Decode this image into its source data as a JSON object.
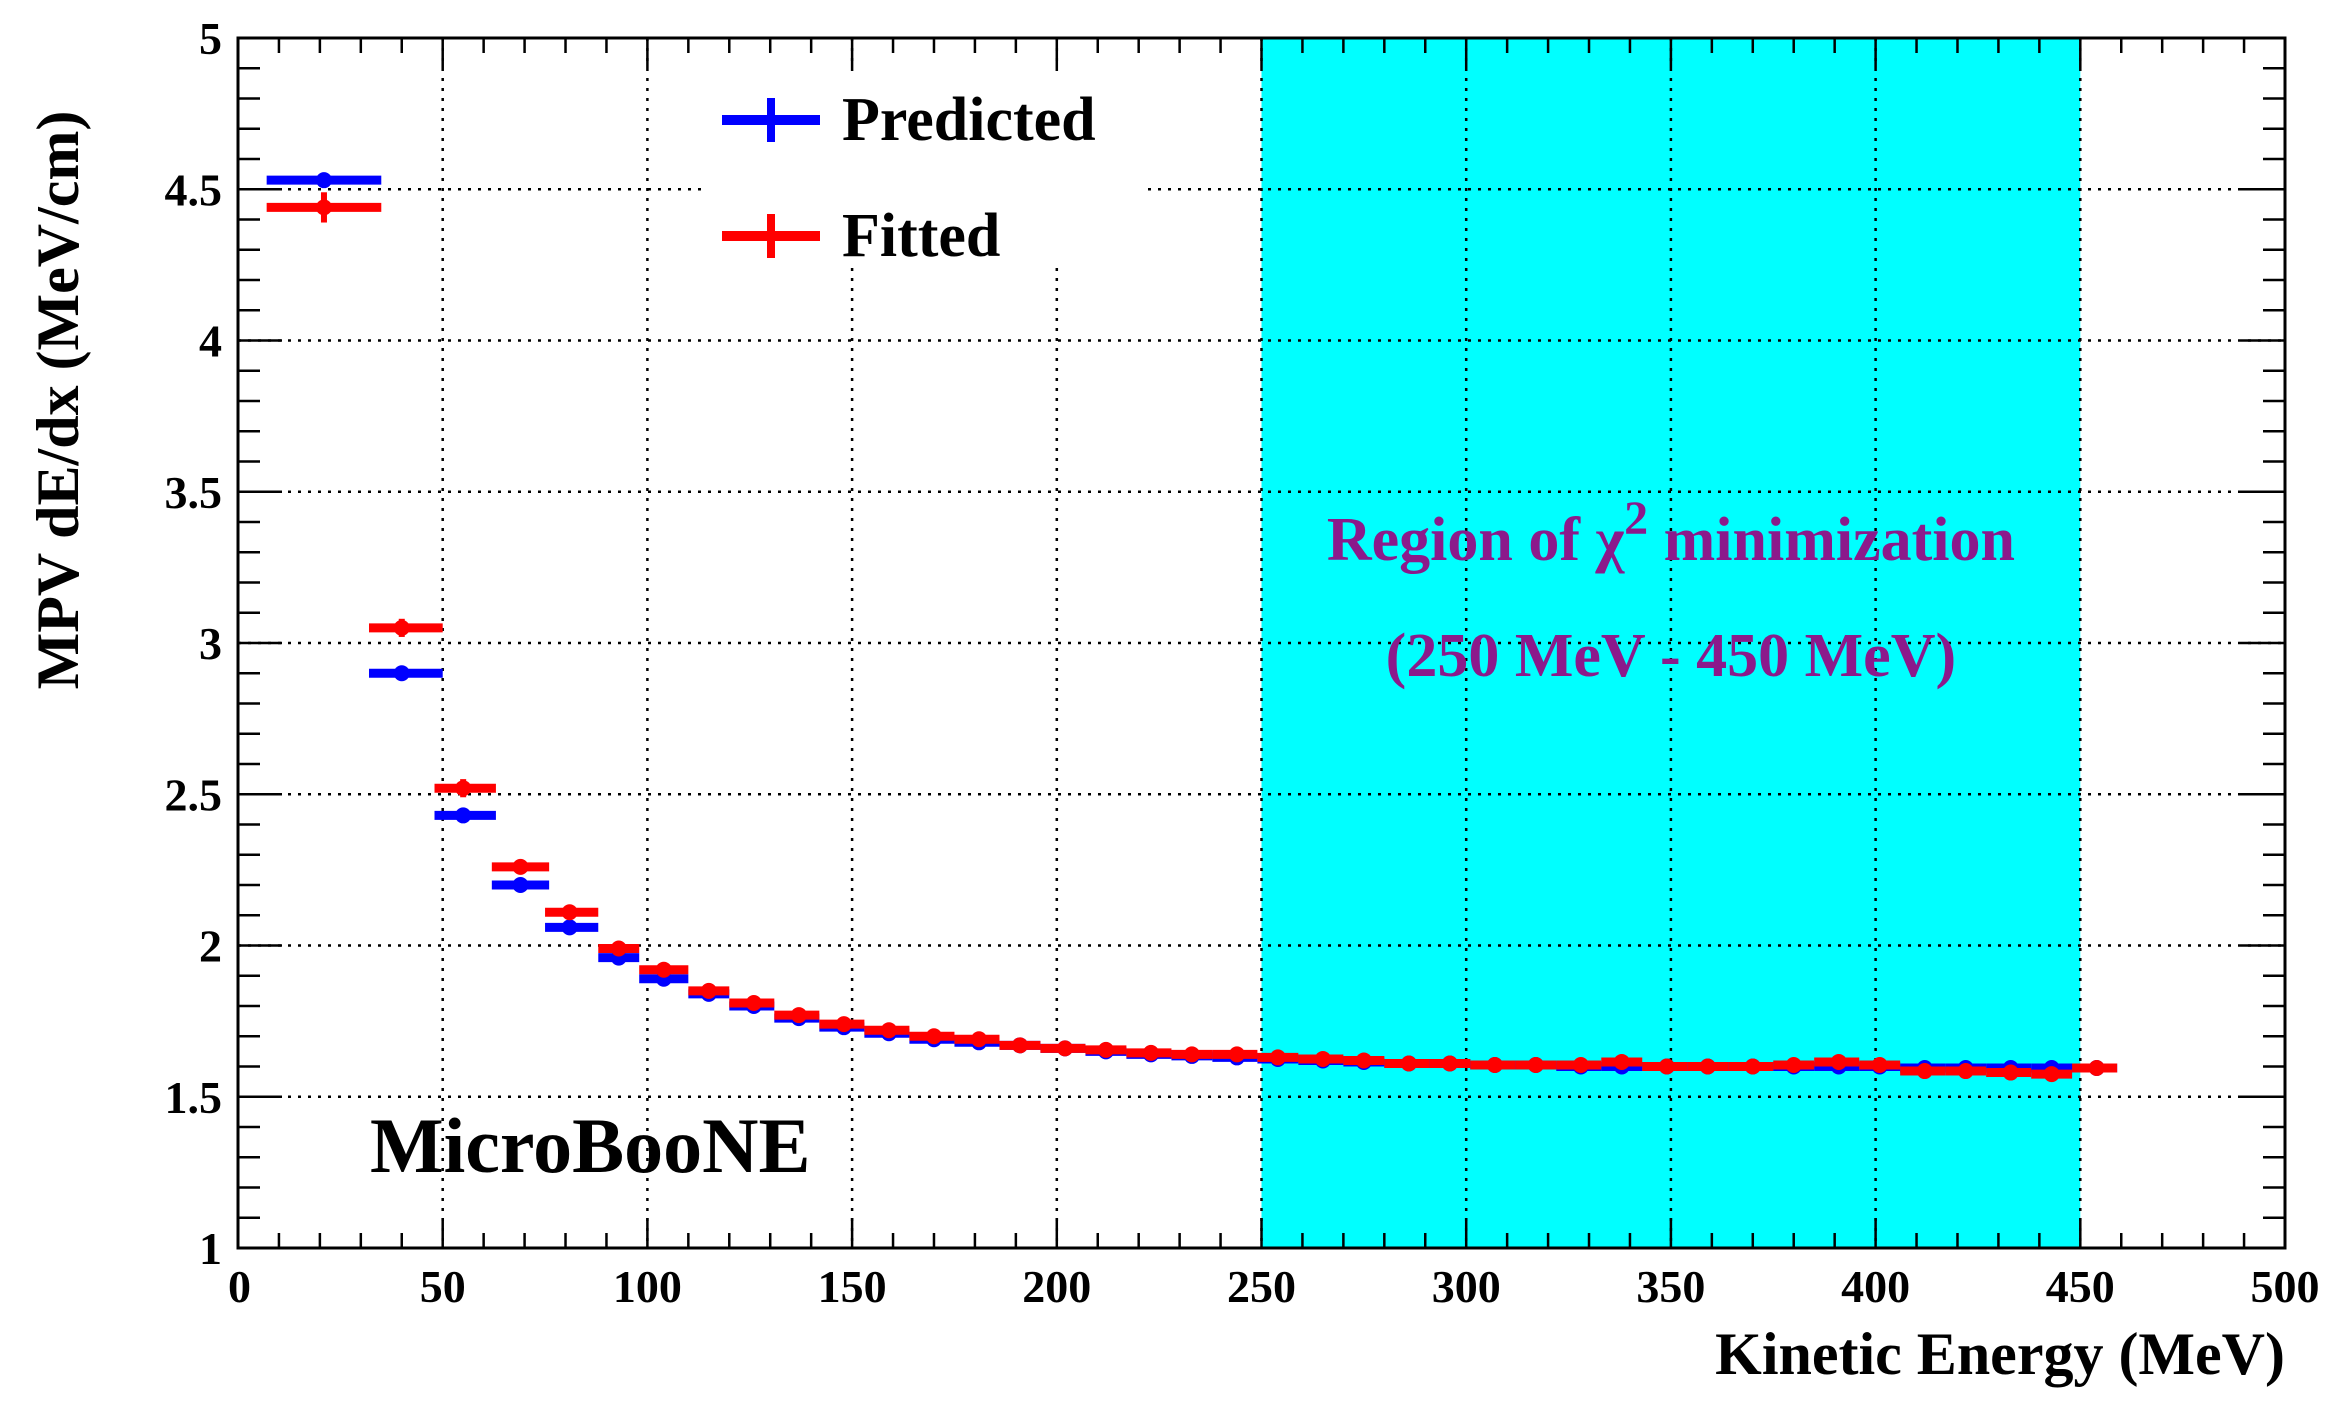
{
  "chart_data": {
    "type": "scatter",
    "title": "",
    "xlabel": "Kinetic Energy (MeV)",
    "ylabel": "MPV dE/dx (MeV/cm)",
    "xlim": [
      0,
      500
    ],
    "ylim": [
      1,
      5
    ],
    "xticks": [
      0,
      50,
      100,
      150,
      200,
      250,
      300,
      350,
      400,
      450,
      500
    ],
    "xtick_labels": [
      "0",
      "50",
      "100",
      "150",
      "200",
      "250",
      "300",
      "350",
      "400",
      "450",
      "500"
    ],
    "yticks": [
      1,
      1.5,
      2,
      2.5,
      3,
      3.5,
      4,
      4.5,
      5
    ],
    "ytick_labels": [
      "1",
      "1.5",
      "2",
      "2.5",
      "3",
      "3.5",
      "4",
      "4.5",
      "5"
    ],
    "grid": true,
    "legend_position": "top-left",
    "bin_width_note": "horizontal error bars span each energy bin",
    "series": [
      {
        "name": "Predicted",
        "color": "#0000ff",
        "points": [
          {
            "x": 21,
            "xlo": 7,
            "xhi": 35,
            "y": 4.53,
            "yerr": 0.01
          },
          {
            "x": 40,
            "xlo": 32,
            "xhi": 50,
            "y": 2.9,
            "yerr": 0.01
          },
          {
            "x": 55,
            "xlo": 48,
            "xhi": 63,
            "y": 2.43,
            "yerr": 0.01
          },
          {
            "x": 69,
            "xlo": 62,
            "xhi": 76,
            "y": 2.2,
            "yerr": 0.01
          },
          {
            "x": 81,
            "xlo": 75,
            "xhi": 88,
            "y": 2.06,
            "yerr": 0.01
          },
          {
            "x": 93,
            "xlo": 88,
            "xhi": 98,
            "y": 1.96,
            "yerr": 0.01
          },
          {
            "x": 104,
            "xlo": 98,
            "xhi": 110,
            "y": 1.89,
            "yerr": 0.01
          },
          {
            "x": 115,
            "xlo": 110,
            "xhi": 120,
            "y": 1.84,
            "yerr": 0.01
          },
          {
            "x": 126,
            "xlo": 120,
            "xhi": 131,
            "y": 1.8,
            "yerr": 0.01
          },
          {
            "x": 137,
            "xlo": 131,
            "xhi": 142,
            "y": 1.76,
            "yerr": 0.01
          },
          {
            "x": 148,
            "xlo": 142,
            "xhi": 153,
            "y": 1.73,
            "yerr": 0.01
          },
          {
            "x": 159,
            "xlo": 153,
            "xhi": 164,
            "y": 1.71,
            "yerr": 0.01
          },
          {
            "x": 170,
            "xlo": 164,
            "xhi": 175,
            "y": 1.69,
            "yerr": 0.01
          },
          {
            "x": 181,
            "xlo": 175,
            "xhi": 186,
            "y": 1.68,
            "yerr": 0.01
          },
          {
            "x": 191,
            "xlo": 186,
            "xhi": 196,
            "y": 1.67,
            "yerr": 0.01
          },
          {
            "x": 202,
            "xlo": 196,
            "xhi": 207,
            "y": 1.66,
            "yerr": 0.01
          },
          {
            "x": 212,
            "xlo": 207,
            "xhi": 217,
            "y": 1.65,
            "yerr": 0.01
          },
          {
            "x": 223,
            "xlo": 217,
            "xhi": 228,
            "y": 1.64,
            "yerr": 0.01
          },
          {
            "x": 233,
            "xlo": 228,
            "xhi": 238,
            "y": 1.635,
            "yerr": 0.01
          },
          {
            "x": 244,
            "xlo": 238,
            "xhi": 249,
            "y": 1.63,
            "yerr": 0.01
          },
          {
            "x": 254,
            "xlo": 249,
            "xhi": 259,
            "y": 1.625,
            "yerr": 0.01
          },
          {
            "x": 265,
            "xlo": 259,
            "xhi": 270,
            "y": 1.62,
            "yerr": 0.01
          },
          {
            "x": 275,
            "xlo": 270,
            "xhi": 280,
            "y": 1.615,
            "yerr": 0.01
          },
          {
            "x": 286,
            "xlo": 280,
            "xhi": 291,
            "y": 1.61,
            "yerr": 0.01
          },
          {
            "x": 296,
            "xlo": 291,
            "xhi": 301,
            "y": 1.61,
            "yerr": 0.01
          },
          {
            "x": 307,
            "xlo": 301,
            "xhi": 312,
            "y": 1.605,
            "yerr": 0.01
          },
          {
            "x": 317,
            "xlo": 312,
            "xhi": 322,
            "y": 1.605,
            "yerr": 0.01
          },
          {
            "x": 328,
            "xlo": 322,
            "xhi": 333,
            "y": 1.6,
            "yerr": 0.01
          },
          {
            "x": 338,
            "xlo": 333,
            "xhi": 343,
            "y": 1.6,
            "yerr": 0.01
          },
          {
            "x": 349,
            "xlo": 343,
            "xhi": 354,
            "y": 1.6,
            "yerr": 0.01
          },
          {
            "x": 359,
            "xlo": 354,
            "xhi": 364,
            "y": 1.6,
            "yerr": 0.01
          },
          {
            "x": 370,
            "xlo": 364,
            "xhi": 375,
            "y": 1.6,
            "yerr": 0.01
          },
          {
            "x": 380,
            "xlo": 375,
            "xhi": 385,
            "y": 1.6,
            "yerr": 0.01
          },
          {
            "x": 391,
            "xlo": 385,
            "xhi": 396,
            "y": 1.6,
            "yerr": 0.01
          },
          {
            "x": 401,
            "xlo": 396,
            "xhi": 406,
            "y": 1.6,
            "yerr": 0.01
          },
          {
            "x": 412,
            "xlo": 406,
            "xhi": 417,
            "y": 1.595,
            "yerr": 0.01
          },
          {
            "x": 422,
            "xlo": 417,
            "xhi": 427,
            "y": 1.595,
            "yerr": 0.01
          },
          {
            "x": 433,
            "xlo": 427,
            "xhi": 438,
            "y": 1.595,
            "yerr": 0.01
          },
          {
            "x": 443,
            "xlo": 438,
            "xhi": 448,
            "y": 1.595,
            "yerr": 0.01
          },
          {
            "x": 454,
            "xlo": 448,
            "xhi": 459,
            "y": 1.595,
            "yerr": 0.01
          }
        ]
      },
      {
        "name": "Fitted",
        "color": "#ff0000",
        "points": [
          {
            "x": 21,
            "xlo": 7,
            "xhi": 35,
            "y": 4.44,
            "yerr": 0.05
          },
          {
            "x": 40,
            "xlo": 32,
            "xhi": 50,
            "y": 3.05,
            "yerr": 0.03
          },
          {
            "x": 55,
            "xlo": 48,
            "xhi": 63,
            "y": 2.52,
            "yerr": 0.03
          },
          {
            "x": 69,
            "xlo": 62,
            "xhi": 76,
            "y": 2.26,
            "yerr": 0.02
          },
          {
            "x": 81,
            "xlo": 75,
            "xhi": 88,
            "y": 2.11,
            "yerr": 0.02
          },
          {
            "x": 93,
            "xlo": 88,
            "xhi": 98,
            "y": 1.99,
            "yerr": 0.02
          },
          {
            "x": 104,
            "xlo": 98,
            "xhi": 110,
            "y": 1.92,
            "yerr": 0.01
          },
          {
            "x": 115,
            "xlo": 110,
            "xhi": 120,
            "y": 1.85,
            "yerr": 0.01
          },
          {
            "x": 126,
            "xlo": 120,
            "xhi": 131,
            "y": 1.81,
            "yerr": 0.01
          },
          {
            "x": 137,
            "xlo": 131,
            "xhi": 142,
            "y": 1.77,
            "yerr": 0.01
          },
          {
            "x": 148,
            "xlo": 142,
            "xhi": 153,
            "y": 1.74,
            "yerr": 0.01
          },
          {
            "x": 159,
            "xlo": 153,
            "xhi": 164,
            "y": 1.72,
            "yerr": 0.01
          },
          {
            "x": 170,
            "xlo": 164,
            "xhi": 175,
            "y": 1.7,
            "yerr": 0.01
          },
          {
            "x": 181,
            "xlo": 175,
            "xhi": 186,
            "y": 1.69,
            "yerr": 0.01
          },
          {
            "x": 191,
            "xlo": 186,
            "xhi": 196,
            "y": 1.67,
            "yerr": 0.01
          },
          {
            "x": 202,
            "xlo": 196,
            "xhi": 207,
            "y": 1.66,
            "yerr": 0.01
          },
          {
            "x": 212,
            "xlo": 207,
            "xhi": 217,
            "y": 1.655,
            "yerr": 0.01
          },
          {
            "x": 223,
            "xlo": 217,
            "xhi": 228,
            "y": 1.645,
            "yerr": 0.01
          },
          {
            "x": 233,
            "xlo": 228,
            "xhi": 238,
            "y": 1.64,
            "yerr": 0.01
          },
          {
            "x": 244,
            "xlo": 238,
            "xhi": 249,
            "y": 1.64,
            "yerr": 0.01
          },
          {
            "x": 254,
            "xlo": 249,
            "xhi": 259,
            "y": 1.63,
            "yerr": 0.01
          },
          {
            "x": 265,
            "xlo": 259,
            "xhi": 270,
            "y": 1.625,
            "yerr": 0.01
          },
          {
            "x": 275,
            "xlo": 270,
            "xhi": 280,
            "y": 1.62,
            "yerr": 0.01
          },
          {
            "x": 286,
            "xlo": 280,
            "xhi": 291,
            "y": 1.61,
            "yerr": 0.01
          },
          {
            "x": 296,
            "xlo": 291,
            "xhi": 301,
            "y": 1.61,
            "yerr": 0.01
          },
          {
            "x": 307,
            "xlo": 301,
            "xhi": 312,
            "y": 1.605,
            "yerr": 0.01
          },
          {
            "x": 317,
            "xlo": 312,
            "xhi": 322,
            "y": 1.605,
            "yerr": 0.01
          },
          {
            "x": 328,
            "xlo": 322,
            "xhi": 333,
            "y": 1.605,
            "yerr": 0.01
          },
          {
            "x": 338,
            "xlo": 333,
            "xhi": 343,
            "y": 1.615,
            "yerr": 0.01
          },
          {
            "x": 349,
            "xlo": 343,
            "xhi": 354,
            "y": 1.6,
            "yerr": 0.01
          },
          {
            "x": 359,
            "xlo": 354,
            "xhi": 364,
            "y": 1.6,
            "yerr": 0.01
          },
          {
            "x": 370,
            "xlo": 364,
            "xhi": 375,
            "y": 1.6,
            "yerr": 0.01
          },
          {
            "x": 380,
            "xlo": 375,
            "xhi": 385,
            "y": 1.605,
            "yerr": 0.01
          },
          {
            "x": 391,
            "xlo": 385,
            "xhi": 396,
            "y": 1.615,
            "yerr": 0.01
          },
          {
            "x": 401,
            "xlo": 396,
            "xhi": 406,
            "y": 1.605,
            "yerr": 0.01
          },
          {
            "x": 412,
            "xlo": 406,
            "xhi": 417,
            "y": 1.585,
            "yerr": 0.01
          },
          {
            "x": 422,
            "xlo": 417,
            "xhi": 427,
            "y": 1.585,
            "yerr": 0.01
          },
          {
            "x": 433,
            "xlo": 427,
            "xhi": 438,
            "y": 1.58,
            "yerr": 0.01
          },
          {
            "x": 443,
            "xlo": 438,
            "xhi": 448,
            "y": 1.575,
            "yerr": 0.01
          },
          {
            "x": 454,
            "xlo": 448,
            "xhi": 459,
            "y": 1.595,
            "yerr": 0.01
          }
        ]
      }
    ],
    "shaded_region": {
      "x_range": [
        250,
        450
      ],
      "color": "#00ffff",
      "label_line1_prefix": "Region of χ",
      "label_line1_superscript": "2",
      "label_line1_suffix": " minimization",
      "label_line2": "(250 MeV - 450 MeV)",
      "label_color": "#8b1a8b"
    },
    "annotations": [
      {
        "text": "MicroBooNE"
      }
    ]
  }
}
